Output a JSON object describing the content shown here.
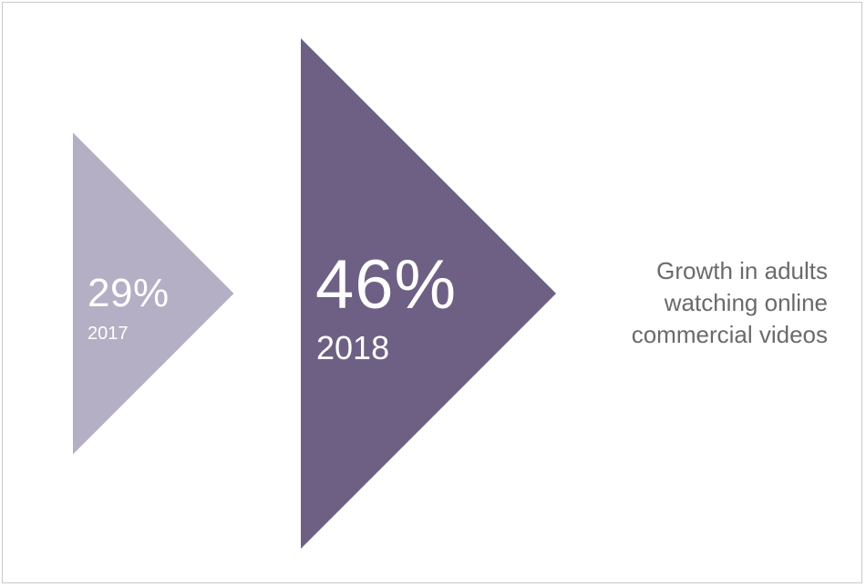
{
  "chart_data": {
    "type": "bar",
    "categories": [
      "2017",
      "2018"
    ],
    "values": [
      29,
      46
    ],
    "value_labels": [
      "29%",
      "46%"
    ],
    "unit": "%",
    "title": "",
    "xlabel": "",
    "ylabel": "",
    "caption": "Growth in adults\nwatching online\ncommercial videos",
    "colors": [
      "#b4afc4",
      "#6e6084"
    ],
    "caption_color": "#6a6a6a"
  }
}
